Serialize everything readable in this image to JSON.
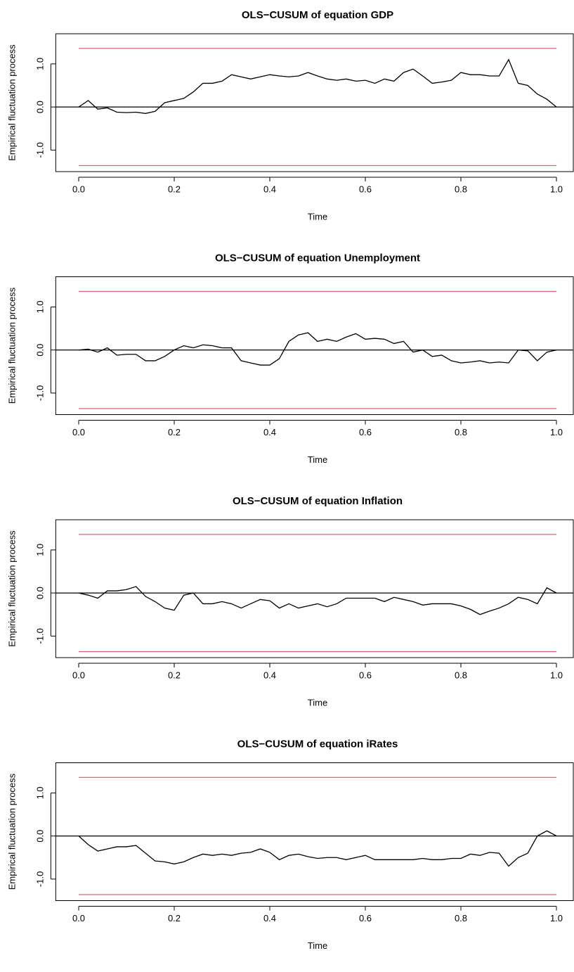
{
  "chart_data": [
    {
      "type": "line",
      "title": "OLS−CUSUM of equation GDP",
      "xlabel": "Time",
      "ylabel": "Empirical fluctuation process",
      "x": [
        0,
        0.02,
        0.04,
        0.06,
        0.08,
        0.1,
        0.12,
        0.14,
        0.16,
        0.18,
        0.2,
        0.22,
        0.24,
        0.26,
        0.28,
        0.3,
        0.32,
        0.34,
        0.36,
        0.38,
        0.4,
        0.42,
        0.44,
        0.46,
        0.48,
        0.5,
        0.52,
        0.54,
        0.56,
        0.58,
        0.6,
        0.62,
        0.64,
        0.66,
        0.68,
        0.7,
        0.72,
        0.74,
        0.76,
        0.78,
        0.8,
        0.82,
        0.84,
        0.86,
        0.88,
        0.9,
        0.92,
        0.94,
        0.96,
        0.98,
        1
      ],
      "series": [
        {
          "color": "#000000",
          "values": [
            0,
            0.15,
            -0.05,
            -0.02,
            -0.12,
            -0.13,
            -0.12,
            -0.15,
            -0.1,
            0.1,
            0.15,
            0.2,
            0.35,
            0.55,
            0.55,
            0.6,
            0.75,
            0.7,
            0.65,
            0.7,
            0.75,
            0.72,
            0.7,
            0.72,
            0.8,
            0.72,
            0.65,
            0.62,
            0.65,
            0.6,
            0.62,
            0.55,
            0.65,
            0.6,
            0.8,
            0.88,
            0.72,
            0.55,
            0.58,
            0.62,
            0.8,
            0.75,
            0.75,
            0.72,
            0.72,
            1.1,
            0.55,
            0.5,
            0.3,
            0.18,
            0
          ]
        }
      ],
      "boundaries": [
        1.36,
        -1.36
      ],
      "boundary_color": "#df536b",
      "reference_line": 0,
      "xlim": [
        -0.048,
        1.04
      ],
      "ylim": [
        -1.5,
        1.7
      ],
      "xticks": [
        {
          "value": 0,
          "label": "0.0"
        },
        0.2,
        0.4,
        0.6,
        0.8,
        {
          "value": 1,
          "label": "1.0"
        }
      ],
      "yticks": [
        {
          "value": -1,
          "label": "-1.0"
        },
        {
          "value": 0,
          "label": "0.0"
        },
        {
          "value": 1,
          "label": "1.0"
        }
      ]
    },
    {
      "type": "line",
      "title": "OLS−CUSUM of equation Unemployment",
      "xlabel": "Time",
      "ylabel": "Empirical fluctuation process",
      "x": [
        0,
        0.02,
        0.04,
        0.06,
        0.08,
        0.1,
        0.12,
        0.14,
        0.16,
        0.18,
        0.2,
        0.22,
        0.24,
        0.26,
        0.28,
        0.3,
        0.32,
        0.34,
        0.36,
        0.38,
        0.4,
        0.42,
        0.44,
        0.46,
        0.48,
        0.5,
        0.52,
        0.54,
        0.56,
        0.58,
        0.6,
        0.62,
        0.64,
        0.66,
        0.68,
        0.7,
        0.72,
        0.74,
        0.76,
        0.78,
        0.8,
        0.82,
        0.84,
        0.86,
        0.88,
        0.9,
        0.92,
        0.94,
        0.96,
        0.98,
        1
      ],
      "series": [
        {
          "color": "#000000",
          "values": [
            0,
            0.02,
            -0.05,
            0.05,
            -0.12,
            -0.1,
            -0.1,
            -0.25,
            -0.25,
            -0.15,
            0,
            0.1,
            0.05,
            0.12,
            0.1,
            0.05,
            0.05,
            -0.25,
            -0.3,
            -0.35,
            -0.35,
            -0.2,
            0.2,
            0.35,
            0.4,
            0.2,
            0.25,
            0.2,
            0.3,
            0.38,
            0.25,
            0.27,
            0.25,
            0.15,
            0.2,
            -0.05,
            0,
            -0.15,
            -0.12,
            -0.25,
            -0.3,
            -0.28,
            -0.25,
            -0.3,
            -0.28,
            -0.3,
            0,
            -0.02,
            -0.25,
            -0.05,
            0
          ]
        }
      ],
      "boundaries": [
        1.36,
        -1.36
      ],
      "boundary_color": "#df536b",
      "reference_line": 0,
      "xlim": [
        -0.048,
        1.04
      ],
      "ylim": [
        -1.5,
        1.7
      ],
      "xticks": [
        {
          "value": 0,
          "label": "0.0"
        },
        0.2,
        0.4,
        0.6,
        0.8,
        {
          "value": 1,
          "label": "1.0"
        }
      ],
      "yticks": [
        {
          "value": -1,
          "label": "-1.0"
        },
        {
          "value": 0,
          "label": "0.0"
        },
        {
          "value": 1,
          "label": "1.0"
        }
      ]
    },
    {
      "type": "line",
      "title": "OLS−CUSUM of equation Inflation",
      "xlabel": "Time",
      "ylabel": "Empirical fluctuation process",
      "x": [
        0,
        0.02,
        0.04,
        0.06,
        0.08,
        0.1,
        0.12,
        0.14,
        0.16,
        0.18,
        0.2,
        0.22,
        0.24,
        0.26,
        0.28,
        0.3,
        0.32,
        0.34,
        0.36,
        0.38,
        0.4,
        0.42,
        0.44,
        0.46,
        0.48,
        0.5,
        0.52,
        0.54,
        0.56,
        0.58,
        0.6,
        0.62,
        0.64,
        0.66,
        0.68,
        0.7,
        0.72,
        0.74,
        0.76,
        0.78,
        0.8,
        0.82,
        0.84,
        0.86,
        0.88,
        0.9,
        0.92,
        0.94,
        0.96,
        0.98,
        1
      ],
      "series": [
        {
          "color": "#000000",
          "values": [
            0,
            -0.05,
            -0.12,
            0.05,
            0.05,
            0.08,
            0.15,
            -0.08,
            -0.2,
            -0.35,
            -0.4,
            -0.05,
            0,
            -0.25,
            -0.25,
            -0.2,
            -0.25,
            -0.35,
            -0.25,
            -0.15,
            -0.18,
            -0.35,
            -0.25,
            -0.35,
            -0.3,
            -0.25,
            -0.32,
            -0.25,
            -0.12,
            -0.12,
            -0.12,
            -0.12,
            -0.2,
            -0.1,
            -0.15,
            -0.2,
            -0.28,
            -0.25,
            -0.25,
            -0.25,
            -0.3,
            -0.38,
            -0.5,
            -0.42,
            -0.35,
            -0.25,
            -0.1,
            -0.15,
            -0.25,
            0.12,
            0
          ]
        }
      ],
      "boundaries": [
        1.36,
        -1.36
      ],
      "boundary_color": "#df536b",
      "reference_line": 0,
      "xlim": [
        -0.048,
        1.04
      ],
      "ylim": [
        -1.5,
        1.7
      ],
      "xticks": [
        {
          "value": 0,
          "label": "0.0"
        },
        0.2,
        0.4,
        0.6,
        0.8,
        {
          "value": 1,
          "label": "1.0"
        }
      ],
      "yticks": [
        {
          "value": -1,
          "label": "-1.0"
        },
        {
          "value": 0,
          "label": "0.0"
        },
        {
          "value": 1,
          "label": "1.0"
        }
      ]
    },
    {
      "type": "line",
      "title": "OLS−CUSUM of equation iRates",
      "xlabel": "Time",
      "ylabel": "Empirical fluctuation process",
      "x": [
        0,
        0.02,
        0.04,
        0.06,
        0.08,
        0.1,
        0.12,
        0.14,
        0.16,
        0.18,
        0.2,
        0.22,
        0.24,
        0.26,
        0.28,
        0.3,
        0.32,
        0.34,
        0.36,
        0.38,
        0.4,
        0.42,
        0.44,
        0.46,
        0.48,
        0.5,
        0.52,
        0.54,
        0.56,
        0.58,
        0.6,
        0.62,
        0.64,
        0.66,
        0.68,
        0.7,
        0.72,
        0.74,
        0.76,
        0.78,
        0.8,
        0.82,
        0.84,
        0.86,
        0.88,
        0.9,
        0.92,
        0.94,
        0.96,
        0.98,
        1
      ],
      "series": [
        {
          "color": "#000000",
          "values": [
            0,
            -0.2,
            -0.35,
            -0.3,
            -0.25,
            -0.25,
            -0.22,
            -0.4,
            -0.58,
            -0.6,
            -0.65,
            -0.6,
            -0.5,
            -0.42,
            -0.45,
            -0.42,
            -0.45,
            -0.4,
            -0.38,
            -0.3,
            -0.38,
            -0.55,
            -0.45,
            -0.42,
            -0.48,
            -0.52,
            -0.5,
            -0.5,
            -0.55,
            -0.5,
            -0.45,
            -0.55,
            -0.55,
            -0.55,
            -0.55,
            -0.55,
            -0.52,
            -0.55,
            -0.55,
            -0.52,
            -0.52,
            -0.42,
            -0.45,
            -0.38,
            -0.4,
            -0.7,
            -0.5,
            -0.4,
            0,
            0.12,
            0
          ]
        }
      ],
      "boundaries": [
        1.36,
        -1.36
      ],
      "boundary_color": "#df536b",
      "reference_line": 0,
      "xlim": [
        -0.048,
        1.04
      ],
      "ylim": [
        -1.5,
        1.7
      ],
      "xticks": [
        {
          "value": 0,
          "label": "0.0"
        },
        0.2,
        0.4,
        0.6,
        0.8,
        {
          "value": 1,
          "label": "1.0"
        }
      ],
      "yticks": [
        {
          "value": -1,
          "label": "-1.0"
        },
        {
          "value": 0,
          "label": "0.0"
        },
        {
          "value": 1,
          "label": "1.0"
        }
      ]
    }
  ]
}
